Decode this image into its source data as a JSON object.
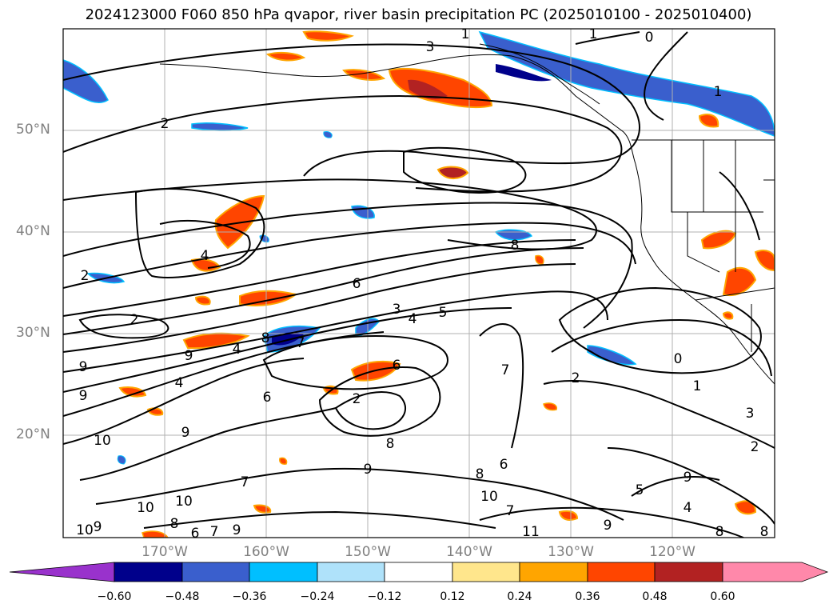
{
  "title": "2024123000 F060 850 hPa qvapor, river basin precipitation PC (2025010100 - 2025010400)",
  "map": {
    "lat_labels": [
      "50°N",
      "40°N",
      "30°N",
      "20°N"
    ],
    "lon_labels": [
      "170°W",
      "160°W",
      "150°W",
      "140°W",
      "130°W",
      "120°W"
    ],
    "contour_labels": [
      "1",
      "1",
      "0",
      "3",
      "2",
      "1",
      "2",
      "4",
      "6",
      "3",
      "4",
      "5",
      "2",
      "4",
      "8",
      "9",
      "8",
      "7",
      "4",
      "6",
      "9",
      "6",
      "2",
      "10",
      "9",
      "9",
      "8",
      "9",
      "7",
      "8",
      "10",
      "10",
      "9",
      "7",
      "8",
      "6",
      "9",
      "10",
      "11",
      "7",
      "6",
      "9",
      "4",
      "5",
      "7",
      "2",
      "0",
      "1",
      "3",
      "2",
      "9",
      "8",
      "8",
      "10"
    ]
  },
  "colorbar": {
    "labels": [
      "−0.60",
      "−0.48",
      "−0.36",
      "−0.24",
      "−0.12",
      "0.12",
      "0.24",
      "0.36",
      "0.48",
      "0.60"
    ],
    "colors": [
      "#9932cc",
      "#00008b",
      "#3a5fcd",
      "#00bfff",
      "#afe2fa",
      "#ffffff",
      "#ffe68c",
      "#ffa500",
      "#ff4500",
      "#b22222",
      "#ff88aa",
      "#ff88aa"
    ]
  }
}
